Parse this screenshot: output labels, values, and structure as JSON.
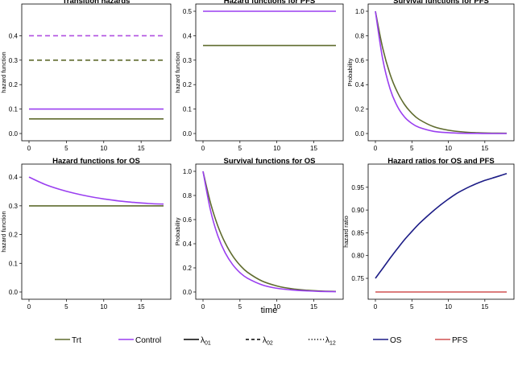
{
  "colors": {
    "trt": "#5f6b2e",
    "control": "#9a3ff0",
    "lambda02_purple": "#b04fe0",
    "os": "#1c1c86",
    "pfs": "#d05050",
    "gray": "#555555"
  },
  "xlabel": "time",
  "legend": [
    {
      "label": "Trt",
      "style": "solid",
      "color": "#5f6b2e"
    },
    {
      "label": "Control",
      "style": "solid",
      "color": "#9a3ff0"
    },
    {
      "label": "λ01",
      "style": "solid",
      "color": "#000000"
    },
    {
      "label": "λ02",
      "style": "dashed",
      "color": "#000000"
    },
    {
      "label": "λ12",
      "style": "dotted",
      "color": "#000000"
    },
    {
      "label": "OS",
      "style": "solid",
      "color": "#1c1c86"
    },
    {
      "label": "PFS",
      "style": "solid",
      "color": "#d05050"
    }
  ],
  "chart_data": [
    {
      "type": "line",
      "title": "Transition hazards",
      "ylabel": "hazard function",
      "xlim": [
        0,
        18
      ],
      "ylim": [
        0,
        0.5
      ],
      "xticks": [
        0,
        5,
        10,
        15
      ],
      "yticks": [
        0.0,
        0.1,
        0.2,
        0.3,
        0.4
      ],
      "series": [
        {
          "name": "Control λ02",
          "group": "Control",
          "dash": "dashed",
          "x": [
            0,
            18
          ],
          "y": [
            0.4,
            0.4
          ]
        },
        {
          "name": "Trt λ02",
          "group": "Trt",
          "dash": "dashed",
          "x": [
            0,
            18
          ],
          "y": [
            0.3,
            0.3
          ]
        },
        {
          "name": "Control λ01",
          "group": "Control",
          "dash": "solid",
          "x": [
            0,
            18
          ],
          "y": [
            0.1,
            0.1
          ]
        },
        {
          "name": "Trt λ01",
          "group": "Trt",
          "dash": "solid",
          "x": [
            0,
            18
          ],
          "y": [
            0.06,
            0.06
          ]
        }
      ]
    },
    {
      "type": "line",
      "title": "Hazard functions for PFS",
      "ylabel": "hazard function",
      "xlim": [
        0,
        18
      ],
      "ylim": [
        0,
        0.5
      ],
      "xticks": [
        0,
        5,
        10,
        15
      ],
      "yticks": [
        0.0,
        0.1,
        0.2,
        0.3,
        0.4,
        0.5
      ],
      "series": [
        {
          "name": "Control",
          "group": "Control",
          "dash": "solid",
          "x": [
            0,
            18
          ],
          "y": [
            0.5,
            0.5
          ]
        },
        {
          "name": "Trt",
          "group": "Trt",
          "dash": "solid",
          "x": [
            0,
            18
          ],
          "y": [
            0.36,
            0.36
          ]
        }
      ]
    },
    {
      "type": "line",
      "title": "Survival functions for PFS",
      "ylabel": "Probability",
      "xlim": [
        0,
        18
      ],
      "ylim": [
        0,
        1.0
      ],
      "xticks": [
        0,
        5,
        10,
        15
      ],
      "yticks": [
        0.0,
        0.2,
        0.4,
        0.6,
        0.8,
        1.0
      ],
      "series": [
        {
          "name": "Trt",
          "group": "Trt",
          "dash": "solid",
          "x": [
            0,
            1,
            2,
            3,
            4,
            5,
            6,
            8,
            10,
            12,
            14,
            16,
            18
          ],
          "y": [
            1.0,
            0.698,
            0.487,
            0.34,
            0.237,
            0.165,
            0.115,
            0.056,
            0.027,
            0.013,
            0.006,
            0.003,
            0.002
          ]
        },
        {
          "name": "Control",
          "group": "Control",
          "dash": "solid",
          "x": [
            0,
            1,
            2,
            3,
            4,
            5,
            6,
            8,
            10,
            12,
            14,
            16,
            18
          ],
          "y": [
            1.0,
            0.607,
            0.368,
            0.223,
            0.135,
            0.082,
            0.05,
            0.018,
            0.007,
            0.002,
            0.001,
            0.0,
            0.0
          ]
        }
      ]
    },
    {
      "type": "line",
      "title": "Hazard functions for OS",
      "ylabel": "hazard function",
      "xlim": [
        0,
        18
      ],
      "ylim": [
        0,
        0.42
      ],
      "xticks": [
        0,
        5,
        10,
        15
      ],
      "yticks": [
        0.0,
        0.1,
        0.2,
        0.3,
        0.4
      ],
      "series": [
        {
          "name": "Control",
          "group": "Control",
          "dash": "solid",
          "x": [
            0,
            2,
            4,
            6,
            8,
            10,
            12,
            14,
            16,
            18
          ],
          "y": [
            0.4,
            0.376,
            0.358,
            0.344,
            0.333,
            0.324,
            0.317,
            0.312,
            0.308,
            0.306
          ]
        },
        {
          "name": "Trt",
          "group": "Trt",
          "dash": "solid",
          "x": [
            0,
            18
          ],
          "y": [
            0.3,
            0.3
          ]
        }
      ]
    },
    {
      "type": "line",
      "title": "Survival functions for OS",
      "ylabel": "Probability",
      "xlim": [
        0,
        18
      ],
      "ylim": [
        0,
        1.0
      ],
      "xticks": [
        0,
        5,
        10,
        15
      ],
      "yticks": [
        0.0,
        0.2,
        0.4,
        0.6,
        0.8,
        1.0
      ],
      "series": [
        {
          "name": "Trt",
          "group": "Trt",
          "dash": "solid",
          "x": [
            0,
            1,
            2,
            3,
            4,
            5,
            6,
            8,
            10,
            12,
            14,
            16,
            18
          ],
          "y": [
            1.0,
            0.741,
            0.549,
            0.407,
            0.301,
            0.223,
            0.165,
            0.091,
            0.05,
            0.027,
            0.015,
            0.008,
            0.005
          ]
        },
        {
          "name": "Control",
          "group": "Control",
          "dash": "solid",
          "x": [
            0,
            1,
            2,
            3,
            4,
            5,
            6,
            8,
            10,
            12,
            14,
            16,
            18
          ],
          "y": [
            1.0,
            0.68,
            0.467,
            0.325,
            0.228,
            0.161,
            0.115,
            0.059,
            0.031,
            0.017,
            0.009,
            0.005,
            0.003
          ]
        }
      ]
    },
    {
      "type": "line",
      "title": "Hazard ratios for OS and PFS",
      "ylabel": "hazard ratio",
      "xlim": [
        0,
        18
      ],
      "ylim": [
        0.72,
        0.985
      ],
      "xticks": [
        0,
        5,
        10,
        15
      ],
      "yticks": [
        0.75,
        0.8,
        0.85,
        0.9,
        0.95
      ],
      "series": [
        {
          "name": "OS",
          "group": "OS",
          "dash": "solid",
          "x": [
            0,
            1,
            2,
            3,
            4,
            5,
            6,
            7,
            8,
            9,
            10,
            11,
            12,
            13,
            14,
            15,
            16,
            17,
            18
          ],
          "y": [
            0.75,
            0.772,
            0.794,
            0.815,
            0.835,
            0.853,
            0.87,
            0.885,
            0.899,
            0.912,
            0.924,
            0.935,
            0.944,
            0.952,
            0.959,
            0.965,
            0.97,
            0.975,
            0.98
          ]
        },
        {
          "name": "PFS",
          "group": "PFS",
          "dash": "solid",
          "x": [
            0,
            18
          ],
          "y": [
            0.72,
            0.72
          ]
        }
      ]
    }
  ]
}
